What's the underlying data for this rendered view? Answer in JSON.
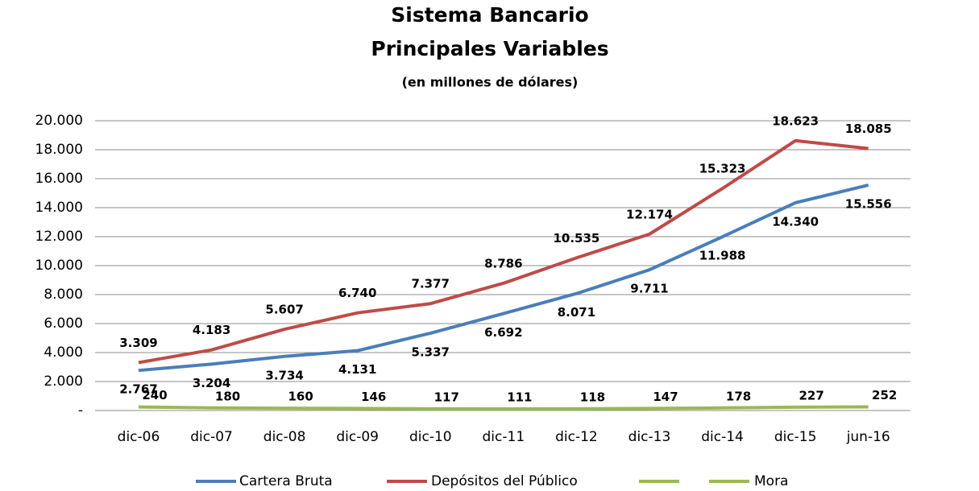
{
  "chart_data": {
    "type": "line",
    "title": [
      "Sistema Bancario",
      "Principales Variables"
    ],
    "subtitle": "(en millones de dólares)",
    "categories": [
      "dic-06",
      "dic-07",
      "dic-08",
      "dic-09",
      "dic-10",
      "dic-11",
      "dic-12",
      "dic-13",
      "dic-14",
      "dic-15",
      "jun-16"
    ],
    "series": [
      {
        "name": "Cartera Bruta",
        "color": "#4a7ebb",
        "values": [
          2767,
          3204,
          3734,
          4131,
          5337,
          6692,
          8071,
          9711,
          11988,
          14340,
          15556
        ],
        "value_labels": [
          "2.767",
          "3.204",
          "3.734",
          "4.131",
          "5.337",
          "6.692",
          "8.071",
          "9.711",
          "11.988",
          "14.340",
          "15.556"
        ]
      },
      {
        "name": "Depósitos del Público",
        "color": "#be4b48",
        "values": [
          3309,
          4183,
          5607,
          6740,
          7377,
          8786,
          10535,
          12174,
          15323,
          18623,
          18085
        ],
        "value_labels": [
          "3.309",
          "4.183",
          "5.607",
          "6.740",
          "7.377",
          "8.786",
          "10.535",
          "12.174",
          "15.323",
          "18.623",
          "18.085"
        ]
      },
      {
        "name": "Mora",
        "color": "#98b954",
        "values": [
          240,
          180,
          160,
          146,
          117,
          111,
          118,
          147,
          178,
          227,
          252
        ]
      }
    ],
    "ylim": [
      0,
      20000
    ],
    "yticks": [
      {
        "value": 0,
        "label": "-"
      },
      {
        "value": 2000,
        "label": "2.000"
      },
      {
        "value": 4000,
        "label": "4.000"
      },
      {
        "value": 6000,
        "label": "6.000"
      },
      {
        "value": 8000,
        "label": "8.000"
      },
      {
        "value": 10000,
        "label": "10.000"
      },
      {
        "value": 12000,
        "label": "12.000"
      },
      {
        "value": 14000,
        "label": "14.000"
      },
      {
        "value": 16000,
        "label": "16.000"
      },
      {
        "value": 18000,
        "label": "18.000"
      },
      {
        "value": 20000,
        "label": "20.000"
      }
    ],
    "grid": true,
    "legend": "bottom"
  }
}
